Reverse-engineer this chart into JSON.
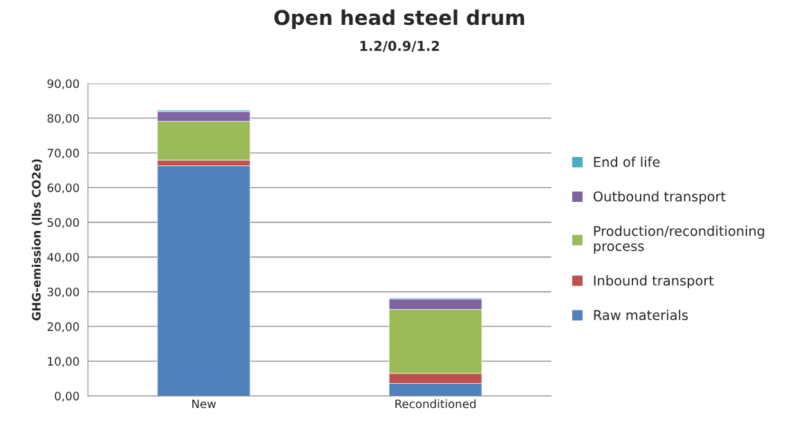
{
  "chart_data": {
    "type": "bar",
    "title": "Open head steel drum",
    "subtitle": "1.2/0.9/1.2",
    "ylabel": "GHG-emission (lbs CO2e)",
    "categories": [
      "New",
      "Reconditioned"
    ],
    "stacked": true,
    "series": [
      {
        "name": "Raw materials",
        "color": "#4f81bd",
        "values": [
          66.3,
          3.6
        ]
      },
      {
        "name": "Inbound transport",
        "color": "#c0504d",
        "values": [
          1.6,
          2.9
        ]
      },
      {
        "name": "Production/reconditioning process",
        "color": "#9bbb59",
        "values": [
          11.2,
          18.4
        ]
      },
      {
        "name": "Outbound transport",
        "color": "#8064a2",
        "values": [
          2.8,
          3.0
        ]
      },
      {
        "name": "End of life",
        "color": "#4bacc6",
        "values": [
          0.4,
          0.3
        ]
      }
    ],
    "ylim": [
      0,
      90
    ],
    "yticks": [
      {
        "value": 0,
        "label": "0,00"
      },
      {
        "value": 10,
        "label": "10,00"
      },
      {
        "value": 20,
        "label": "20,00"
      },
      {
        "value": 30,
        "label": "30,00"
      },
      {
        "value": 40,
        "label": "40,00"
      },
      {
        "value": 50,
        "label": "50,00"
      },
      {
        "value": 60,
        "label": "60,00"
      },
      {
        "value": 70,
        "label": "70,00"
      },
      {
        "value": 80,
        "label": "80,00"
      },
      {
        "value": 90,
        "label": "90,00"
      }
    ],
    "grid": "y",
    "legend": "right"
  }
}
